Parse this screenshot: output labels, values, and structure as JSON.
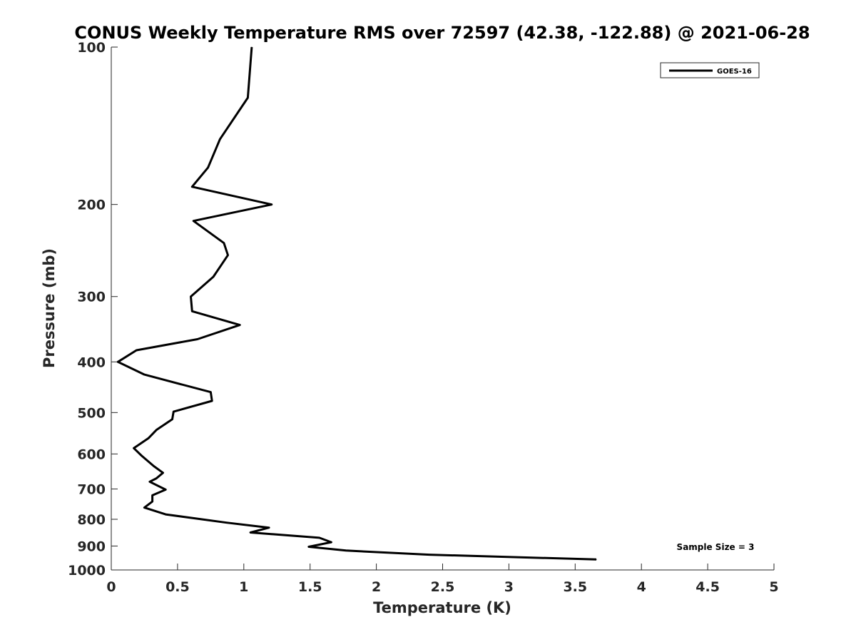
{
  "chart_data": {
    "type": "line",
    "title": "CONUS Weekly Temperature RMS over 72597 (42.38, -122.88) @ 2021-06-28",
    "xlabel": "Temperature (K)",
    "ylabel": "Pressure (mb)",
    "xlim": [
      0,
      5
    ],
    "ylim": [
      100,
      1000
    ],
    "y_scale": "log",
    "y_reversed": true,
    "grid": false,
    "legend_placement": "top-right",
    "x_ticks": [
      0,
      0.5,
      1,
      1.5,
      2,
      2.5,
      3,
      3.5,
      4,
      4.5,
      5
    ],
    "x_tick_labels": [
      "0",
      "0.5",
      "1",
      "1.5",
      "2",
      "2.5",
      "3",
      "3.5",
      "4",
      "4.5",
      "5"
    ],
    "y_ticks": [
      100,
      200,
      300,
      400,
      500,
      600,
      700,
      800,
      900,
      1000
    ],
    "y_tick_labels": [
      "100",
      "200",
      "300",
      "400",
      "500",
      "600",
      "700",
      "800",
      "900",
      "1000"
    ],
    "series": [
      {
        "name": "GOES-16",
        "color": "#000000",
        "points": [
          [
            1.06,
            100
          ],
          [
            1.03,
            125
          ],
          [
            0.82,
            150
          ],
          [
            0.73,
            170
          ],
          [
            0.61,
            185
          ],
          [
            1.21,
            200
          ],
          [
            0.62,
            215
          ],
          [
            0.85,
            237
          ],
          [
            0.88,
            250
          ],
          [
            0.77,
            275
          ],
          [
            0.6,
            300
          ],
          [
            0.61,
            320
          ],
          [
            0.97,
            340
          ],
          [
            0.65,
            362
          ],
          [
            0.19,
            380
          ],
          [
            0.05,
            400
          ],
          [
            0.25,
            423
          ],
          [
            0.75,
            457
          ],
          [
            0.76,
            475
          ],
          [
            0.47,
            498
          ],
          [
            0.46,
            515
          ],
          [
            0.34,
            540
          ],
          [
            0.28,
            560
          ],
          [
            0.17,
            585
          ],
          [
            0.23,
            605
          ],
          [
            0.32,
            633
          ],
          [
            0.39,
            652
          ],
          [
            0.34,
            668
          ],
          [
            0.29,
            678
          ],
          [
            0.41,
            702
          ],
          [
            0.31,
            720
          ],
          [
            0.31,
            740
          ],
          [
            0.25,
            760
          ],
          [
            0.41,
            783
          ],
          [
            0.87,
            812
          ],
          [
            1.19,
            830
          ],
          [
            1.05,
            848
          ],
          [
            1.57,
            868
          ],
          [
            1.66,
            885
          ],
          [
            1.49,
            903
          ],
          [
            1.77,
            918
          ],
          [
            2.4,
            935
          ],
          [
            3.66,
            955
          ]
        ]
      }
    ],
    "annotation": "Sample Size = 3"
  }
}
